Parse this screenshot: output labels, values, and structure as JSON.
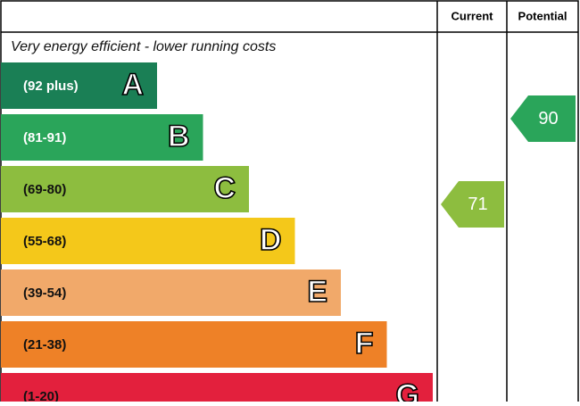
{
  "chart_data": {
    "type": "energy-rating",
    "top_label": "Very energy efficient - lower running costs",
    "bands": [
      {
        "range": "(92 plus)",
        "letter": "A",
        "color": "#1a7f55",
        "text_color": "#ffffff"
      },
      {
        "range": "(81-91)",
        "letter": "B",
        "color": "#2aa55a",
        "text_color": "#ffffff"
      },
      {
        "range": "(69-80)",
        "letter": "C",
        "color": "#8dbd3f",
        "text_color": "#111111"
      },
      {
        "range": "(55-68)",
        "letter": "D",
        "color": "#f4c81a",
        "text_color": "#111111"
      },
      {
        "range": "(39-54)",
        "letter": "E",
        "color": "#f1a96a",
        "text_color": "#111111"
      },
      {
        "range": "(21-38)",
        "letter": "F",
        "color": "#ee8127",
        "text_color": "#111111"
      },
      {
        "range": "(1-20)",
        "letter": "G",
        "color": "#e3203d",
        "text_color": "#111111"
      }
    ],
    "series": [
      {
        "name": "Current",
        "values": [
          71
        ],
        "color": "#8dbd3f"
      },
      {
        "name": "Potential",
        "values": [
          90
        ],
        "color": "#2aa55a"
      }
    ]
  }
}
